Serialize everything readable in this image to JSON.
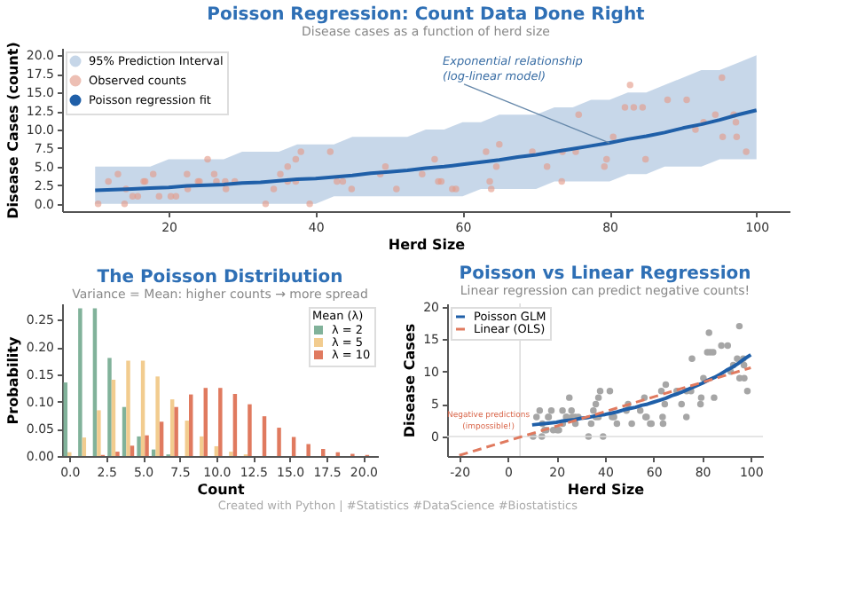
{
  "chart_data": [
    {
      "type": "scatter",
      "title": "Poisson Regression: Count Data Done Right",
      "xlabel": "Herd Size",
      "ylabel": "Disease Cases (count)",
      "xlim": [
        5.5,
        104.5
      ],
      "xticks": [
        20,
        40,
        60,
        80,
        100
      ],
      "ylim": [
        -1,
        21
      ],
      "yticks": [
        {
          "value": 0,
          "label": "0.0"
        },
        2.5,
        {
          "value": 5,
          "label": "5.0"
        },
        7.5,
        {
          "value": 10,
          "label": "10.0"
        },
        12.5,
        {
          "value": 15,
          "label": "15.0"
        },
        17.5,
        {
          "value": 20,
          "label": "20.0"
        }
      ],
      "grid": false,
      "legend": "top left",
      "annotations": [
        "Disease cases as a function of herd size",
        "95% Prediction Interval",
        {
          "text": "Exponential relationship\n(log-linear model)",
          "x": 80,
          "y": 8.2
        }
      ],
      "series": [
        {
          "name": "Observed counts",
          "type": "scatter",
          "marker": "circle",
          "color": "#e39a88",
          "x": [
            10.4,
            11.8,
            13.1,
            14.0,
            14.2,
            15.1,
            15.8,
            16.6,
            16.8,
            17.9,
            18.7,
            20.3,
            21.0,
            22.5,
            22.6,
            24.0,
            24.2,
            25.3,
            26.2,
            26.5,
            27.7,
            27.8,
            29.0,
            33.2,
            34.3,
            35.2,
            36.2,
            36.2,
            37.3,
            37.3,
            38.0,
            39.2,
            42.0,
            42.9,
            43.7,
            44.9,
            48.8,
            49.5,
            51.0,
            54.5,
            56.2,
            56.7,
            57.1,
            58.6,
            59.1,
            63.2,
            63.7,
            63.9,
            64.6,
            65.0,
            69.5,
            71.5,
            73.5,
            73.6,
            75.4,
            75.8,
            79.3,
            79.6,
            80.5,
            82.1,
            82.8,
            83.3,
            84.5,
            84.9,
            87.9,
            90.5,
            91.7,
            92.8,
            94.4,
            95.3,
            95.4,
            96.9,
            97.2,
            97.3,
            98.6
          ],
          "values": [
            0,
            3,
            4,
            0,
            2,
            1,
            1,
            3,
            3,
            4,
            1,
            1,
            1,
            4,
            2,
            3,
            3,
            6,
            4,
            3,
            3,
            2,
            3,
            0,
            2,
            4,
            5,
            3,
            3,
            6,
            7,
            0,
            7,
            3,
            3,
            2,
            4,
            5,
            2,
            4,
            6,
            3,
            3,
            2,
            2,
            7,
            3,
            2,
            5,
            8,
            7,
            5,
            3,
            7,
            7,
            12,
            5,
            6,
            9,
            13,
            16,
            13,
            13,
            6,
            14,
            14,
            10,
            11,
            12,
            17,
            9,
            12,
            11,
            9,
            7
          ]
        },
        {
          "name": "Poisson regression fit",
          "type": "line",
          "color": "#1f5fa8",
          "x": [
            10,
            12.5,
            15,
            17.5,
            20,
            22.5,
            25,
            27.5,
            30,
            32.5,
            35,
            37.5,
            40,
            42.5,
            45,
            47.5,
            50,
            52.5,
            55,
            57.5,
            60,
            62.5,
            65,
            67.5,
            70,
            72.5,
            75,
            77.5,
            80,
            82.5,
            85,
            87.5,
            90,
            92.5,
            95,
            97.5,
            100
          ],
          "values": [
            1.8,
            1.9,
            2.0,
            2.1,
            2.2,
            2.4,
            2.5,
            2.6,
            2.8,
            2.9,
            3.1,
            3.3,
            3.4,
            3.6,
            3.8,
            4.1,
            4.3,
            4.5,
            4.8,
            5.0,
            5.3,
            5.6,
            5.9,
            6.3,
            6.6,
            7.0,
            7.4,
            7.8,
            8.2,
            8.7,
            9.1,
            9.6,
            10.2,
            10.7,
            11.3,
            12.0,
            12.6
          ],
          "lower": [
            0,
            0,
            0,
            0,
            0,
            0,
            0,
            0,
            0,
            0,
            0,
            0,
            0,
            1,
            1,
            1,
            1,
            1,
            1,
            1,
            1,
            2,
            2,
            2,
            2,
            3,
            3,
            3,
            3,
            4,
            4,
            5,
            5,
            5,
            6,
            6,
            6
          ],
          "upper": [
            5,
            5,
            5,
            5,
            6,
            6,
            6,
            6,
            7,
            7,
            7,
            8,
            8,
            8,
            9,
            9,
            9,
            9,
            10,
            10,
            11,
            11,
            12,
            12,
            12,
            13,
            13,
            14,
            14,
            15,
            15,
            16,
            17,
            18,
            18,
            19,
            20
          ]
        }
      ]
    },
    {
      "type": "bar",
      "title": "The Poisson Distribution",
      "xlabel": "Count",
      "ylabel": "Probability",
      "legend_title": "Mean (λ)",
      "legend": "top right",
      "grid": false,
      "annotations": [
        "Variance = Mean: higher counts → more spread"
      ],
      "x": [
        0,
        1,
        2,
        3,
        4,
        5,
        6,
        7,
        8,
        9,
        10,
        11,
        12,
        13,
        14,
        15,
        16,
        17,
        18,
        19,
        20
      ],
      "xlim": [
        -0.5,
        21
      ],
      "xticks": [
        {
          "value": 0,
          "label": "0.0"
        },
        2.5,
        {
          "value": 5,
          "label": "5.0"
        },
        7.5,
        {
          "value": 10,
          "label": "10.0"
        },
        12.5,
        {
          "value": 15,
          "label": "15.0"
        },
        17.5,
        {
          "value": 20,
          "label": "20.0"
        }
      ],
      "ylim": [
        0,
        0.28
      ],
      "yticks": [
        {
          "value": 0,
          "label": "0.00"
        },
        0.05,
        {
          "value": 0.1,
          "label": "0.10"
        },
        0.15,
        {
          "value": 0.2,
          "label": "0.20"
        },
        0.25
      ],
      "series": [
        {
          "name": "λ = 2",
          "color": "#81b29a",
          "values": [
            0.135,
            0.271,
            0.271,
            0.18,
            0.09,
            0.036,
            0.012,
            0.003,
            null,
            0,
            0,
            0,
            0,
            0,
            0,
            0,
            0,
            0,
            0,
            0,
            0
          ]
        },
        {
          "name": "λ = 5",
          "color": "#f2cc8f",
          "values": [
            0.007,
            0.034,
            0.084,
            0.14,
            0.175,
            0.175,
            0.146,
            0.104,
            0.065,
            0.036,
            0.018,
            0.008,
            0.003,
            null,
            0,
            0,
            0,
            0,
            0,
            0,
            0
          ]
        },
        {
          "name": "λ = 10",
          "color": "#e07a5f",
          "values": [
            0,
            0,
            0.002,
            0.008,
            0.019,
            0.038,
            0.063,
            0.09,
            0.113,
            0.125,
            0.125,
            0.114,
            0.095,
            0.073,
            0.052,
            0.035,
            0.022,
            0.013,
            0.007,
            0.004,
            0.002
          ]
        }
      ]
    },
    {
      "type": "scatter",
      "title": "Poisson vs Linear Regression",
      "xlabel": "Herd Size",
      "ylabel": "Disease Cases",
      "xlim": [
        -25,
        105
      ],
      "xticks": [
        -20,
        0,
        20,
        40,
        60,
        80,
        100
      ],
      "ylim": [
        -3,
        20.5
      ],
      "yticks": [
        0,
        5,
        10,
        15,
        20
      ],
      "grid": false,
      "legend": "top left",
      "annotations": [
        "Linear regression can predict negative counts!",
        {
          "text": "Negative predictions\n(impossible!)",
          "x": -8,
          "y": 0
        },
        "Created with Python | #Statistics #DataScience #Biostatistics"
      ],
      "ref_lines": [
        {
          "axis": "y",
          "value": 0,
          "color": "#dddddd"
        },
        {
          "axis": "x",
          "value": 5,
          "color": "#dddddd"
        }
      ],
      "series": [
        {
          "type": "scatter",
          "marker": "circle",
          "color": "#a6a6a6",
          "x": [
            10.4,
            11.8,
            13.1,
            14.0,
            14.2,
            15.1,
            15.8,
            16.6,
            16.8,
            17.9,
            18.7,
            20.3,
            21.0,
            22.5,
            22.6,
            24.0,
            24.2,
            25.3,
            26.2,
            26.5,
            27.7,
            27.8,
            29.0,
            33.2,
            34.3,
            35.2,
            36.2,
            36.2,
            37.3,
            37.3,
            38.0,
            39.2,
            42.0,
            42.9,
            43.7,
            44.9,
            48.8,
            49.5,
            51.0,
            54.5,
            56.2,
            56.7,
            57.1,
            58.6,
            59.1,
            63.2,
            63.7,
            63.9,
            64.6,
            65.0,
            69.5,
            71.5,
            73.5,
            73.6,
            75.4,
            75.8,
            79.3,
            79.6,
            80.5,
            82.1,
            82.8,
            83.3,
            84.5,
            84.9,
            87.9,
            90.5,
            91.7,
            92.8,
            94.4,
            95.3,
            95.4,
            96.9,
            97.2,
            97.3,
            98.6
          ],
          "values": [
            0,
            3,
            4,
            0,
            2,
            1,
            1,
            3,
            3,
            4,
            1,
            1,
            1,
            4,
            2,
            3,
            3,
            6,
            4,
            3,
            3,
            2,
            3,
            0,
            2,
            4,
            5,
            3,
            3,
            6,
            7,
            0,
            7,
            3,
            3,
            2,
            4,
            5,
            2,
            4,
            6,
            3,
            3,
            2,
            2,
            7,
            3,
            2,
            5,
            8,
            7,
            5,
            3,
            7,
            7,
            12,
            5,
            6,
            9,
            13,
            16,
            13,
            13,
            6,
            14,
            14,
            10,
            11,
            12,
            17,
            9,
            12,
            11,
            9,
            7
          ]
        },
        {
          "name": "Poisson GLM",
          "type": "line",
          "color": "#1f5fa8",
          "line_style": "solid",
          "x": [
            10,
            12.5,
            15,
            17.5,
            20,
            22.5,
            25,
            27.5,
            30,
            32.5,
            35,
            37.5,
            40,
            42.5,
            45,
            47.5,
            50,
            52.5,
            55,
            57.5,
            60,
            62.5,
            65,
            67.5,
            70,
            72.5,
            75,
            77.5,
            80,
            82.5,
            85,
            87.5,
            90,
            92.5,
            95,
            97.5,
            100
          ],
          "values": [
            1.8,
            1.9,
            2.0,
            2.1,
            2.2,
            2.4,
            2.5,
            2.6,
            2.8,
            2.9,
            3.1,
            3.3,
            3.4,
            3.6,
            3.8,
            4.1,
            4.3,
            4.5,
            4.8,
            5.0,
            5.3,
            5.6,
            5.9,
            6.3,
            6.6,
            7.0,
            7.4,
            7.8,
            8.2,
            8.7,
            9.1,
            9.6,
            10.2,
            10.7,
            11.3,
            12.0,
            12.6
          ]
        },
        {
          "name": "Linear (OLS)",
          "type": "line",
          "color": "#e07a5f",
          "line_style": "dashed",
          "x": [
            -20,
            100
          ],
          "values": [
            -2.9,
            10.6
          ]
        }
      ]
    }
  ]
}
